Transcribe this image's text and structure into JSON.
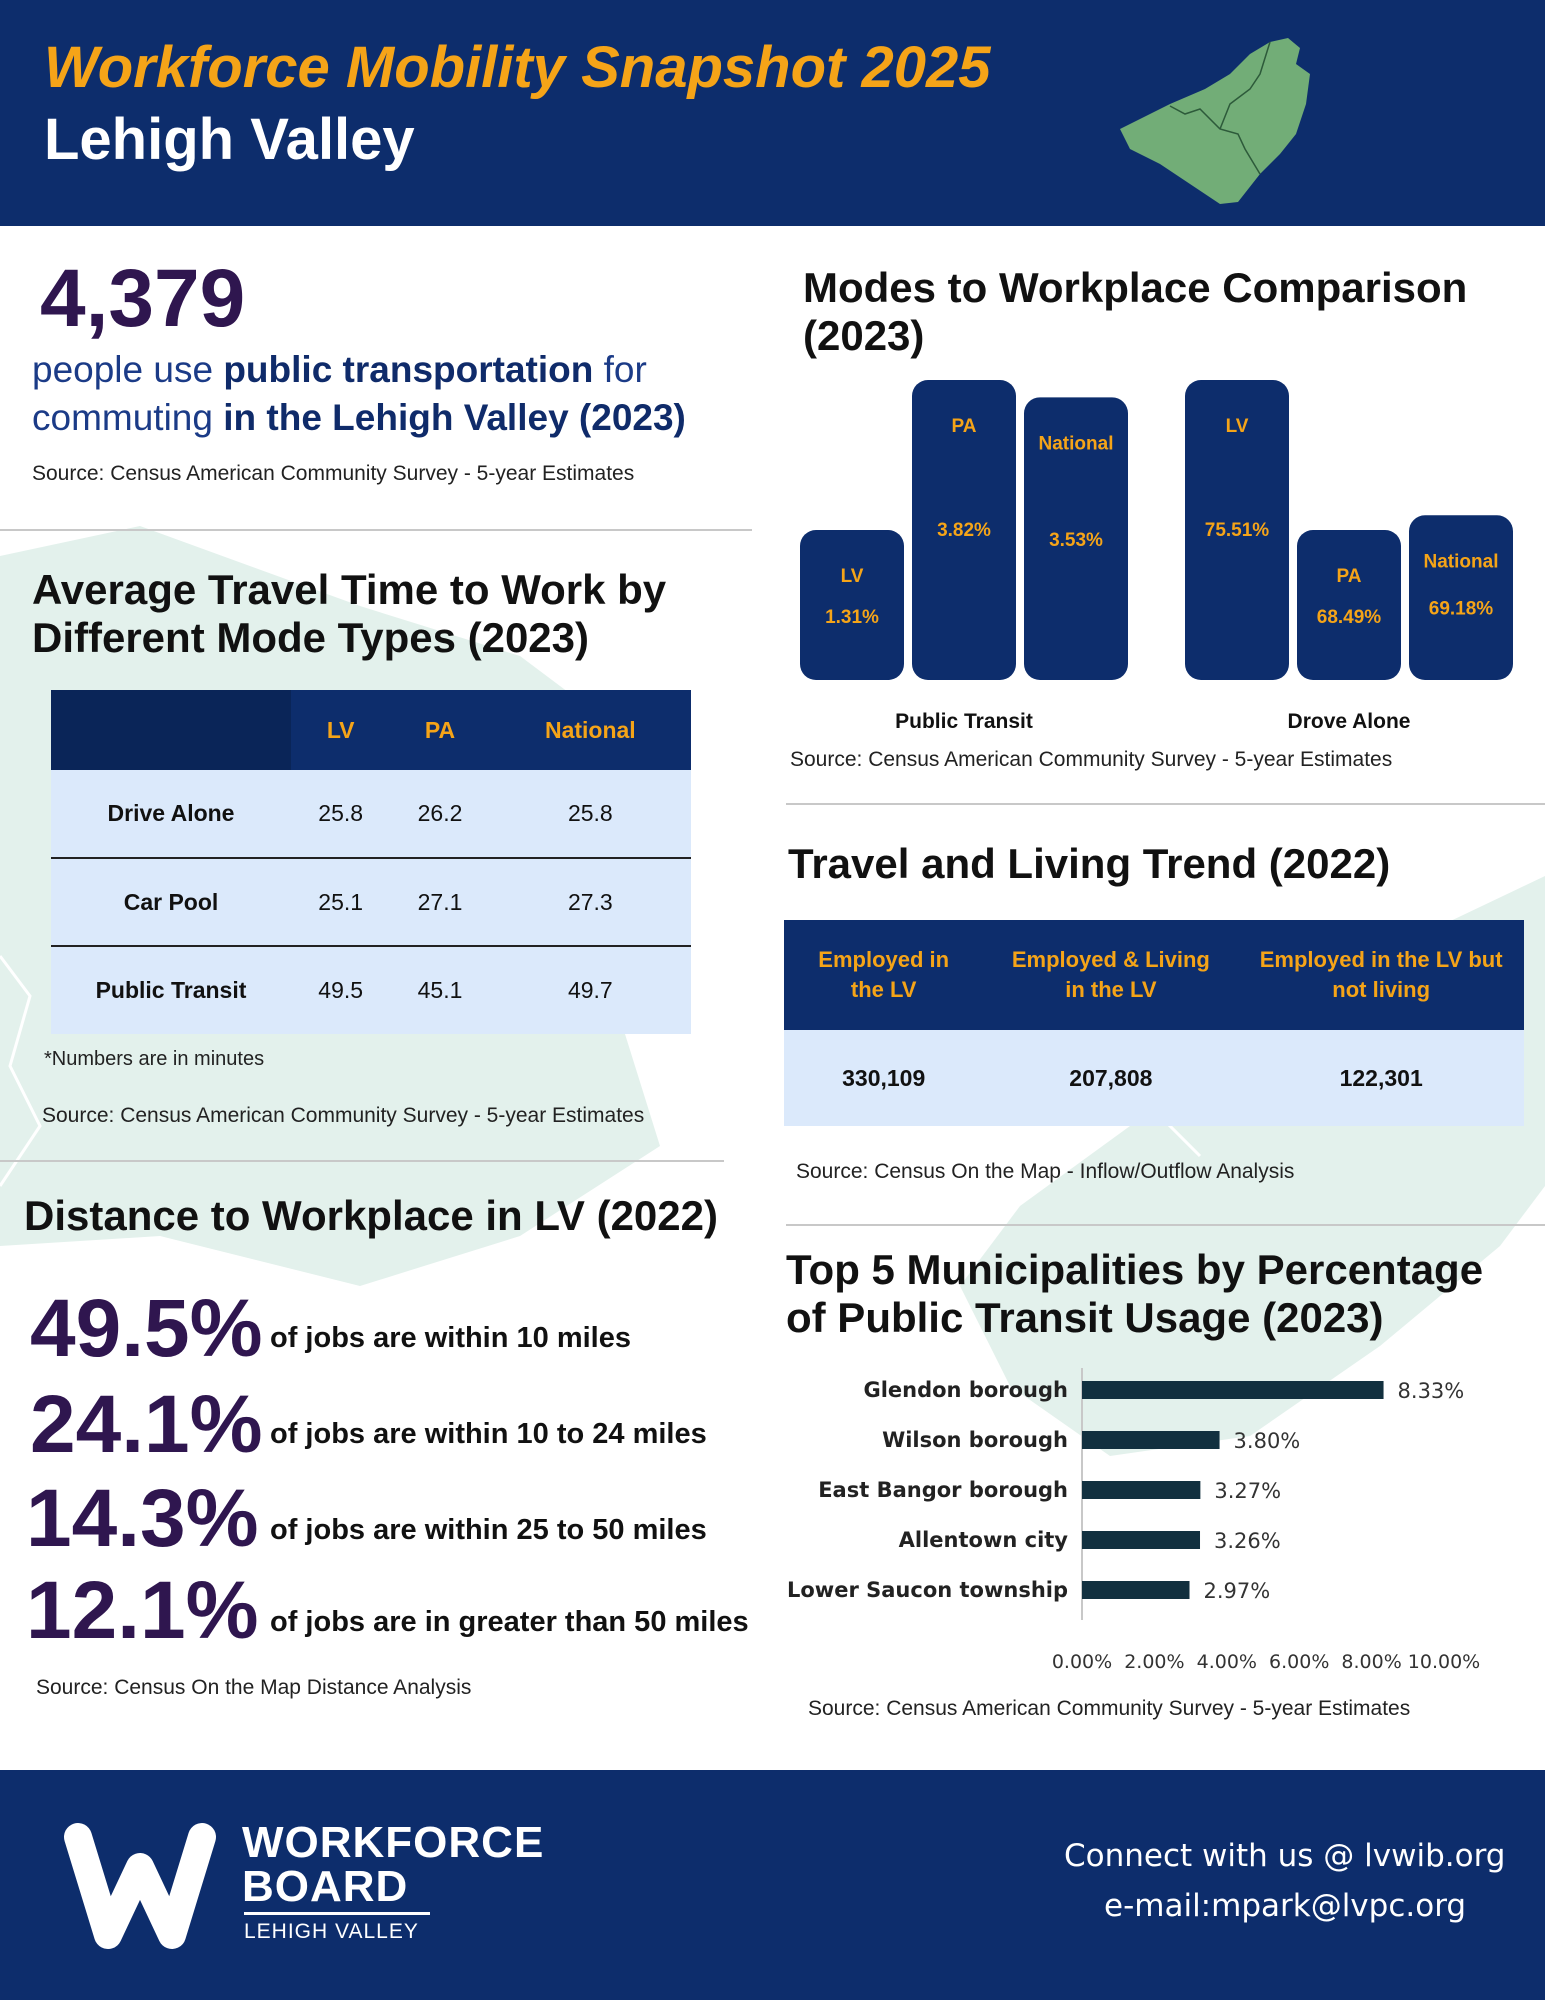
{
  "header": {
    "title": "Workforce Mobility Snapshot 2025",
    "subtitle": "Lehigh Valley"
  },
  "hero": {
    "number": "4,379",
    "text_1": "people use ",
    "text_bold_1": "public transportation",
    "text_2": " for commuting ",
    "text_bold_2": "in the Lehigh Valley (2023)",
    "source": "Source: Census American Community Survey - 5-year Estimates"
  },
  "travel_time": {
    "title": "Average Travel Time to Work by Different Mode Types (2023)",
    "columns": [
      "LV",
      "PA",
      "National"
    ],
    "rows": [
      {
        "label": "Drive Alone",
        "values": [
          "25.8",
          "26.2",
          "25.8"
        ]
      },
      {
        "label": "Car Pool",
        "values": [
          "25.1",
          "27.1",
          "27.3"
        ]
      },
      {
        "label": "Public Transit",
        "values": [
          "49.5",
          "45.1",
          "49.7"
        ]
      }
    ],
    "note": "*Numbers are in minutes",
    "source": "Source: Census American Community Survey - 5-year Estimates"
  },
  "modes": {
    "title": "Modes to Workplace Comparison (2023)",
    "source": "Source: Census American Community Survey - 5-year Estimates"
  },
  "trend": {
    "title": "Travel and Living Trend (2022)",
    "columns": [
      "Employed in the LV",
      "Employed & Living in the LV",
      "Employed in the LV but not living"
    ],
    "values": [
      "330,109",
      "207,808",
      "122,301"
    ],
    "source": "Source: Census On the Map - Inflow/Outflow Analysis"
  },
  "distance": {
    "title": "Distance to Workplace in LV (2022)",
    "items": [
      {
        "pct": "49.5%",
        "text": "of jobs are within 10 miles"
      },
      {
        "pct": "24.1%",
        "text": "of jobs are within 10 to 24 miles"
      },
      {
        "pct": "14.3%",
        "text": "of jobs are within 25 to 50 miles"
      },
      {
        "pct": "12.1%",
        "text": "of jobs are in greater than 50 miles"
      }
    ],
    "source": "Source: Census On the Map Distance Analysis"
  },
  "top5": {
    "title": "Top 5 Municipalities by Percentage of Public Transit Usage (2023)",
    "source": "Source: Census American Community Survey - 5-year Estimates"
  },
  "footer": {
    "logo_line1": "WORKFORCE",
    "logo_line2": "BOARD",
    "logo_line3": "LEHIGH VALLEY",
    "contact": "Connect with us @ lvwib.org",
    "email": "e-mail:mpark@lvpc.org"
  },
  "colors": {
    "navy": "#0d2d6c",
    "gold": "#f5a418",
    "purple": "#2f164f",
    "light_blue": "#dbe9fb",
    "bar_dark": "#12303f",
    "map_green": "#72ad77"
  },
  "chart_data": [
    {
      "type": "bar",
      "title": "Modes to Workplace Comparison (2023)",
      "groups": [
        "Public Transit",
        "Drove Alone"
      ],
      "series": [
        {
          "name": "LV",
          "values": [
            1.31,
            75.51
          ],
          "labels": [
            "1.31%",
            "75.51%"
          ]
        },
        {
          "name": "PA",
          "values": [
            3.82,
            68.49
          ],
          "labels": [
            "3.82%",
            "68.49%"
          ]
        },
        {
          "name": "National",
          "values": [
            3.53,
            69.18
          ],
          "labels": [
            "3.53%",
            "69.18%"
          ]
        }
      ]
    },
    {
      "type": "bar",
      "orientation": "horizontal",
      "title": "Top 5 Municipalities by Percentage of Public Transit Usage (2023)",
      "categories": [
        "Glendon borough",
        "Wilson borough",
        "East Bangor borough",
        "Allentown city",
        "Lower Saucon township"
      ],
      "values": [
        8.33,
        3.8,
        3.27,
        3.26,
        2.97
      ],
      "value_labels": [
        "8.33%",
        "3.80%",
        "3.27%",
        "3.26%",
        "2.97%"
      ],
      "xlim": [
        0,
        10
      ],
      "ticks": [
        "0.00%",
        "2.00%",
        "4.00%",
        "6.00%",
        "8.00%",
        "10.00%"
      ]
    }
  ]
}
